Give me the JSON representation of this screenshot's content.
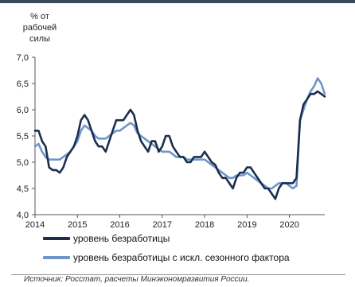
{
  "chart_data": {
    "type": "line",
    "ylabel": "% от рабочей силы",
    "ylabel_lines": [
      "% от",
      "рабочей",
      "силы"
    ],
    "ylim": [
      4.0,
      7.0
    ],
    "yticks": [
      "4,0",
      "4,5",
      "5,0",
      "5,5",
      "6,0",
      "6,5",
      "7,0"
    ],
    "xticks": [
      "2014",
      "2015",
      "2016",
      "2017",
      "2018",
      "2019",
      "2020"
    ],
    "xlim": [
      2014.0,
      2020.8333
    ],
    "grid": false,
    "legend_position": "bottom",
    "series": [
      {
        "name": "уровень безработицы",
        "color": "#1b2f4c",
        "points": [
          [
            2014.0,
            5.6
          ],
          [
            2014.083,
            5.6
          ],
          [
            2014.167,
            5.4
          ],
          [
            2014.25,
            5.3
          ],
          [
            2014.333,
            4.9
          ],
          [
            2014.417,
            4.85
          ],
          [
            2014.5,
            4.85
          ],
          [
            2014.583,
            4.8
          ],
          [
            2014.667,
            4.9
          ],
          [
            2014.75,
            5.1
          ],
          [
            2014.833,
            5.2
          ],
          [
            2014.917,
            5.3
          ],
          [
            2015.0,
            5.5
          ],
          [
            2015.083,
            5.8
          ],
          [
            2015.167,
            5.9
          ],
          [
            2015.25,
            5.8
          ],
          [
            2015.333,
            5.6
          ],
          [
            2015.417,
            5.4
          ],
          [
            2015.5,
            5.3
          ],
          [
            2015.583,
            5.3
          ],
          [
            2015.667,
            5.2
          ],
          [
            2015.75,
            5.4
          ],
          [
            2015.833,
            5.6
          ],
          [
            2015.917,
            5.8
          ],
          [
            2016.0,
            5.8
          ],
          [
            2016.083,
            5.8
          ],
          [
            2016.167,
            5.9
          ],
          [
            2016.25,
            6.0
          ],
          [
            2016.333,
            5.9
          ],
          [
            2016.417,
            5.6
          ],
          [
            2016.5,
            5.4
          ],
          [
            2016.583,
            5.3
          ],
          [
            2016.667,
            5.2
          ],
          [
            2016.75,
            5.4
          ],
          [
            2016.833,
            5.4
          ],
          [
            2016.917,
            5.2
          ],
          [
            2017.0,
            5.3
          ],
          [
            2017.083,
            5.5
          ],
          [
            2017.167,
            5.5
          ],
          [
            2017.25,
            5.3
          ],
          [
            2017.333,
            5.2
          ],
          [
            2017.417,
            5.1
          ],
          [
            2017.5,
            5.1
          ],
          [
            2017.583,
            5.0
          ],
          [
            2017.667,
            5.0
          ],
          [
            2017.75,
            5.1
          ],
          [
            2017.833,
            5.1
          ],
          [
            2017.917,
            5.1
          ],
          [
            2018.0,
            5.2
          ],
          [
            2018.083,
            5.1
          ],
          [
            2018.167,
            5.0
          ],
          [
            2018.25,
            4.95
          ],
          [
            2018.333,
            4.8
          ],
          [
            2018.417,
            4.7
          ],
          [
            2018.5,
            4.7
          ],
          [
            2018.583,
            4.6
          ],
          [
            2018.667,
            4.5
          ],
          [
            2018.75,
            4.7
          ],
          [
            2018.833,
            4.8
          ],
          [
            2018.917,
            4.8
          ],
          [
            2019.0,
            4.9
          ],
          [
            2019.083,
            4.9
          ],
          [
            2019.167,
            4.8
          ],
          [
            2019.25,
            4.7
          ],
          [
            2019.333,
            4.6
          ],
          [
            2019.417,
            4.5
          ],
          [
            2019.5,
            4.5
          ],
          [
            2019.583,
            4.4
          ],
          [
            2019.667,
            4.3
          ],
          [
            2019.75,
            4.5
          ],
          [
            2019.833,
            4.6
          ],
          [
            2019.917,
            4.6
          ],
          [
            2020.0,
            4.6
          ],
          [
            2020.083,
            4.6
          ],
          [
            2020.167,
            4.7
          ],
          [
            2020.25,
            5.8
          ],
          [
            2020.333,
            6.1
          ],
          [
            2020.417,
            6.2
          ],
          [
            2020.5,
            6.3
          ],
          [
            2020.583,
            6.3
          ],
          [
            2020.667,
            6.35
          ],
          [
            2020.75,
            6.3
          ],
          [
            2020.833,
            6.25
          ]
        ]
      },
      {
        "name": "уровень безработицы с искл. сезонного фактора",
        "color": "#6f95cc",
        "points": [
          [
            2014.0,
            5.3
          ],
          [
            2014.083,
            5.35
          ],
          [
            2014.167,
            5.2
          ],
          [
            2014.25,
            5.1
          ],
          [
            2014.333,
            5.05
          ],
          [
            2014.417,
            5.05
          ],
          [
            2014.5,
            5.05
          ],
          [
            2014.583,
            5.05
          ],
          [
            2014.667,
            5.1
          ],
          [
            2014.75,
            5.15
          ],
          [
            2014.833,
            5.2
          ],
          [
            2014.917,
            5.3
          ],
          [
            2015.0,
            5.4
          ],
          [
            2015.083,
            5.6
          ],
          [
            2015.167,
            5.7
          ],
          [
            2015.25,
            5.65
          ],
          [
            2015.333,
            5.6
          ],
          [
            2015.417,
            5.5
          ],
          [
            2015.5,
            5.45
          ],
          [
            2015.583,
            5.45
          ],
          [
            2015.667,
            5.45
          ],
          [
            2015.75,
            5.5
          ],
          [
            2015.833,
            5.55
          ],
          [
            2015.917,
            5.6
          ],
          [
            2016.0,
            5.6
          ],
          [
            2016.083,
            5.65
          ],
          [
            2016.167,
            5.7
          ],
          [
            2016.25,
            5.75
          ],
          [
            2016.333,
            5.7
          ],
          [
            2016.417,
            5.55
          ],
          [
            2016.5,
            5.5
          ],
          [
            2016.583,
            5.45
          ],
          [
            2016.667,
            5.4
          ],
          [
            2016.75,
            5.35
          ],
          [
            2016.833,
            5.3
          ],
          [
            2016.917,
            5.25
          ],
          [
            2017.0,
            5.2
          ],
          [
            2017.083,
            5.2
          ],
          [
            2017.167,
            5.2
          ],
          [
            2017.25,
            5.15
          ],
          [
            2017.333,
            5.1
          ],
          [
            2017.417,
            5.1
          ],
          [
            2017.5,
            5.1
          ],
          [
            2017.583,
            5.05
          ],
          [
            2017.667,
            5.05
          ],
          [
            2017.75,
            5.05
          ],
          [
            2017.833,
            5.05
          ],
          [
            2017.917,
            5.05
          ],
          [
            2018.0,
            5.05
          ],
          [
            2018.083,
            5.0
          ],
          [
            2018.167,
            4.95
          ],
          [
            2018.25,
            4.9
          ],
          [
            2018.333,
            4.85
          ],
          [
            2018.417,
            4.8
          ],
          [
            2018.5,
            4.75
          ],
          [
            2018.583,
            4.7
          ],
          [
            2018.667,
            4.7
          ],
          [
            2018.75,
            4.75
          ],
          [
            2018.833,
            4.75
          ],
          [
            2018.917,
            4.75
          ],
          [
            2019.0,
            4.8
          ],
          [
            2019.083,
            4.75
          ],
          [
            2019.167,
            4.7
          ],
          [
            2019.25,
            4.65
          ],
          [
            2019.333,
            4.6
          ],
          [
            2019.417,
            4.55
          ],
          [
            2019.5,
            4.5
          ],
          [
            2019.583,
            4.5
          ],
          [
            2019.667,
            4.55
          ],
          [
            2019.75,
            4.6
          ],
          [
            2019.833,
            4.6
          ],
          [
            2019.917,
            4.6
          ],
          [
            2020.0,
            4.55
          ],
          [
            2020.083,
            4.5
          ],
          [
            2020.167,
            4.55
          ],
          [
            2020.25,
            5.8
          ],
          [
            2020.333,
            6.0
          ],
          [
            2020.417,
            6.2
          ],
          [
            2020.5,
            6.35
          ],
          [
            2020.583,
            6.45
          ],
          [
            2020.667,
            6.6
          ],
          [
            2020.75,
            6.5
          ],
          [
            2020.833,
            6.3
          ]
        ]
      }
    ]
  },
  "source_note": "Источник: Росстат, расчеты Минэкономразвития России."
}
